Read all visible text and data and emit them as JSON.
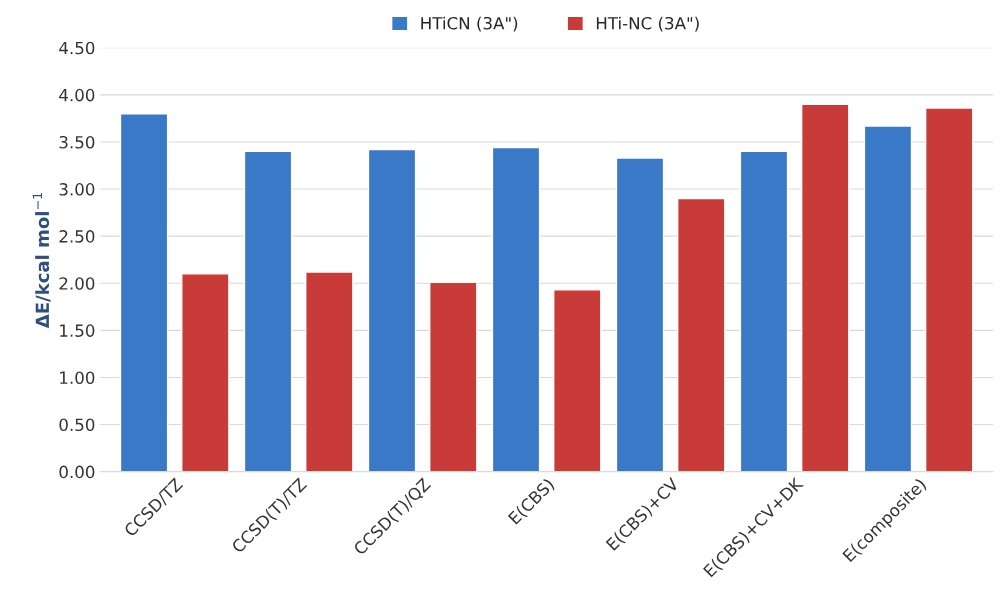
{
  "chart_data": {
    "type": "bar",
    "ylabel": "ΔE/kcal mol$^{−1}$",
    "categories": [
      "CCSD/TZ",
      "CCSD(T)/TZ",
      "CCSD(T)/QZ",
      "E(CBS)",
      "E(CBS)+CV",
      "E(CBS)+CV+DK",
      "E(composite)"
    ],
    "series": [
      {
        "name": "HTiCN (3A\")",
        "color": "#3a78c8",
        "values": [
          3.8,
          3.4,
          3.42,
          3.44,
          3.33,
          3.4,
          3.67
        ]
      },
      {
        "name": "HTi-NC (3A\")",
        "color": "#c83b38",
        "values": [
          2.1,
          2.12,
          2.01,
          1.93,
          2.9,
          3.9,
          3.86
        ]
      }
    ],
    "ylim": [
      0,
      4.5
    ],
    "yticks": [
      {
        "value": 0,
        "label": "0.00"
      },
      {
        "value": 0.5,
        "label": "0.50"
      },
      {
        "value": 1,
        "label": "1.00"
      },
      {
        "value": 1.5,
        "label": "1.50"
      },
      {
        "value": 2,
        "label": "2.00"
      },
      {
        "value": 2.5,
        "label": "2.50"
      },
      {
        "value": 3,
        "label": "3.00"
      },
      {
        "value": 3.5,
        "label": "3.50"
      },
      {
        "value": 4,
        "label": "4.00"
      },
      {
        "value": 4.5,
        "label": "4.50"
      }
    ],
    "grid": "y",
    "legend": "top"
  }
}
